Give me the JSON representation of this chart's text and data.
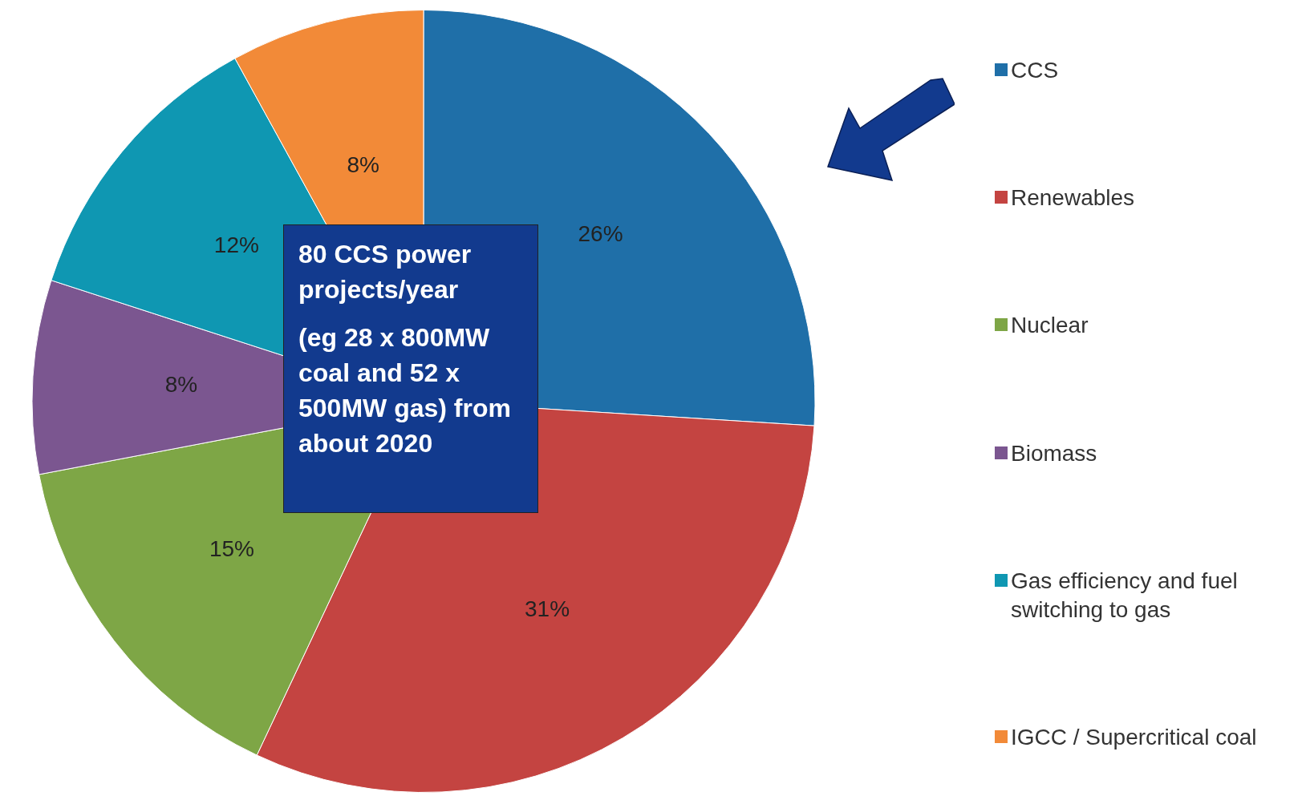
{
  "chart_data": {
    "type": "pie",
    "categories": [
      "CCS",
      "Renewables",
      "Nuclear",
      "Biomass",
      "Gas efficiency and fuel switching to gas",
      "IGCC / Supercritical coal"
    ],
    "values": [
      26,
      31,
      15,
      8,
      12,
      8
    ],
    "value_labels": [
      "26%",
      "31%",
      "15%",
      "8%",
      "12%",
      "8%"
    ],
    "colors": [
      "#1f6fa8",
      "#c44441",
      "#7ea646",
      "#7b5690",
      "#0f97b2",
      "#f28a38"
    ],
    "legend": "right",
    "annotations": [
      "80 CCS power projects/year",
      "(eg 28 x 800MW coal and 52 x 500MW gas) from about 2020"
    ]
  }
}
